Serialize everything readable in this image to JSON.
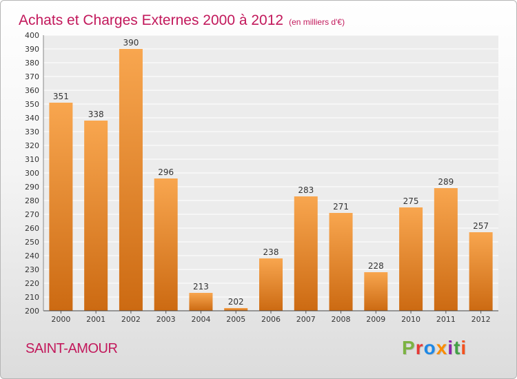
{
  "header": {
    "title": "Achats et Charges Externes 2000 à 2012",
    "unit": "(en milliers d'€)"
  },
  "footer": {
    "city": "SAINT-AMOUR",
    "logo": "Proxiti"
  },
  "colors": {
    "bar_light": "#f8a64f",
    "bar_dark": "#cc6a12",
    "title": "#c2185b",
    "logo_letters": [
      "#7cb342",
      "#e53935",
      "#1e88e5",
      "#fb8c00",
      "#8e24aa",
      "#43a047",
      "#f4511e"
    ]
  },
  "chart_data": {
    "type": "bar",
    "title": "Achats et Charges Externes 2000 à 2012",
    "subtitle": "(en milliers d'€)",
    "categories": [
      "2000",
      "2001",
      "2002",
      "2003",
      "2004",
      "2005",
      "2006",
      "2007",
      "2008",
      "2009",
      "2010",
      "2011",
      "2012"
    ],
    "values": [
      351,
      338,
      390,
      296,
      213,
      202,
      238,
      283,
      271,
      228,
      275,
      289,
      257
    ],
    "ylim": [
      200,
      400
    ],
    "yticks": [
      200,
      210,
      220,
      230,
      240,
      250,
      260,
      270,
      280,
      290,
      300,
      310,
      320,
      330,
      340,
      350,
      360,
      370,
      380,
      390,
      400
    ],
    "grid": true,
    "legend": "none",
    "xlabel": "",
    "ylabel": ""
  }
}
